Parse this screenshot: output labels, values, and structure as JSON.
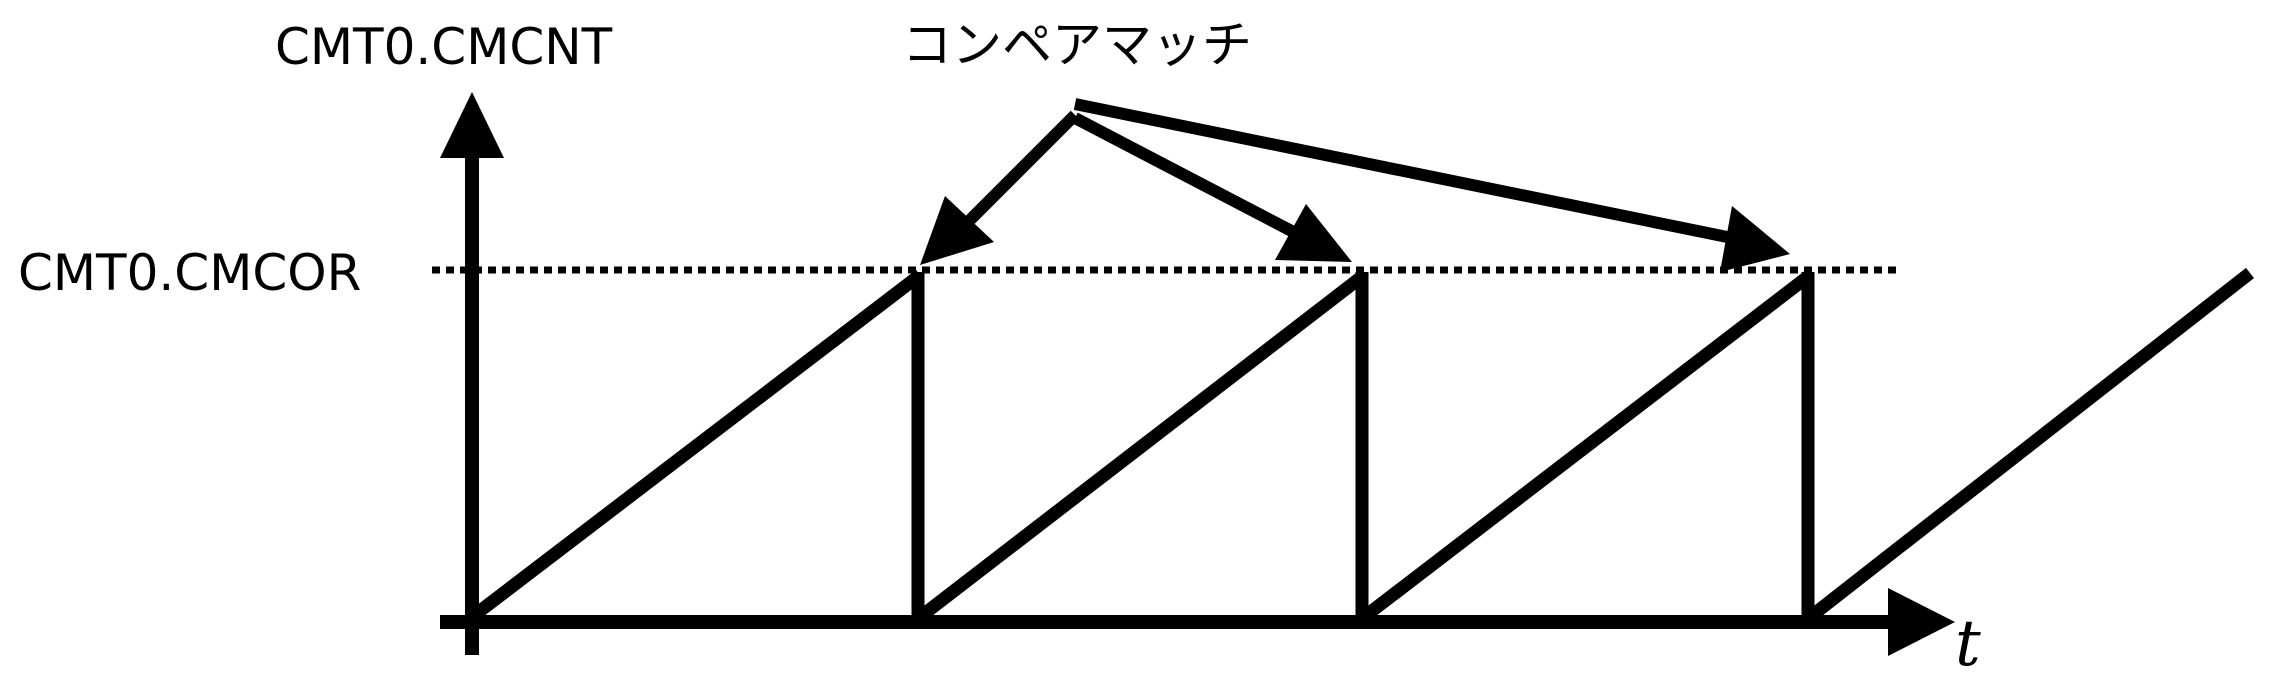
{
  "labels": {
    "y_axis": "CMT0.CMCNT",
    "compare_level": "CMT0.CMCOR",
    "compare_match": "コンペアマッチ",
    "time_axis": "t"
  },
  "colors": {
    "line": "#000000",
    "background": "#ffffff"
  },
  "style": {
    "compare_level_line": "dotted",
    "ramp_cycles": 4
  }
}
